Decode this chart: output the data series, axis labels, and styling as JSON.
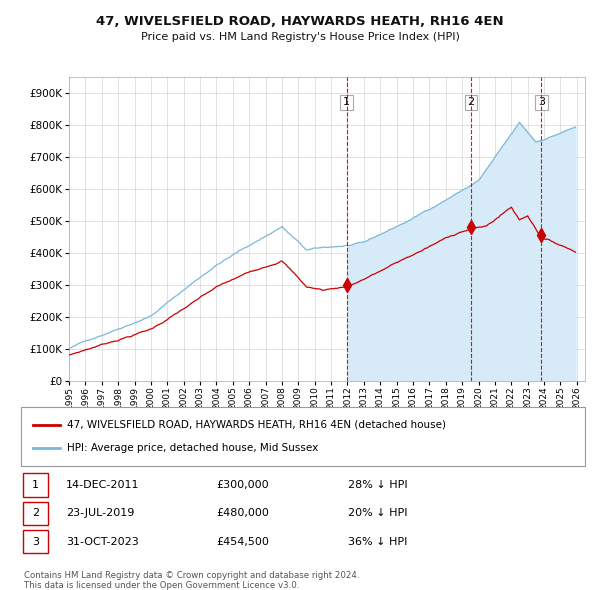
{
  "title": "47, WIVELSFIELD ROAD, HAYWARDS HEATH, RH16 4EN",
  "subtitle": "Price paid vs. HM Land Registry's House Price Index (HPI)",
  "ylabel_ticks": [
    "£0",
    "£100K",
    "£200K",
    "£300K",
    "£400K",
    "£500K",
    "£600K",
    "£700K",
    "£800K",
    "£900K"
  ],
  "ytick_values": [
    0,
    100000,
    200000,
    300000,
    400000,
    500000,
    600000,
    700000,
    800000,
    900000
  ],
  "ylim": [
    0,
    950000
  ],
  "xlim_start": 1995.0,
  "xlim_end": 2026.5,
  "hpi_color": "#7ab8d9",
  "hpi_fill_color": "#d6eaf8",
  "price_color": "#cc0000",
  "dashed_line_color": "#cc0000",
  "transactions": [
    {
      "date": 2011.95,
      "price": 300000,
      "label": "1"
    },
    {
      "date": 2019.55,
      "price": 480000,
      "label": "2"
    },
    {
      "date": 2023.83,
      "price": 454500,
      "label": "3"
    }
  ],
  "legend_label_price": "47, WIVELSFIELD ROAD, HAYWARDS HEATH, RH16 4EN (detached house)",
  "legend_label_hpi": "HPI: Average price, detached house, Mid Sussex",
  "table_rows": [
    {
      "num": "1",
      "date": "14-DEC-2011",
      "price": "£300,000",
      "pct": "28% ↓ HPI"
    },
    {
      "num": "2",
      "date": "23-JUL-2019",
      "price": "£480,000",
      "pct": "20% ↓ HPI"
    },
    {
      "num": "3",
      "date": "31-OCT-2023",
      "price": "£454,500",
      "pct": "36% ↓ HPI"
    }
  ],
  "footnote": "Contains HM Land Registry data © Crown copyright and database right 2024.\nThis data is licensed under the Open Government Licence v3.0.",
  "background_color": "#ffffff",
  "plot_bg_color": "#ffffff",
  "grid_color": "#cccccc",
  "hpi_seed": 42,
  "price_seed": 7
}
